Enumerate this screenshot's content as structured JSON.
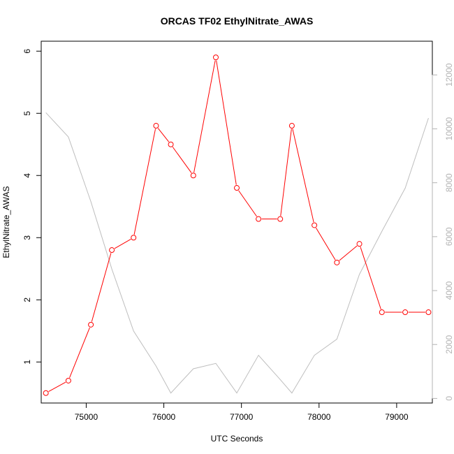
{
  "chart_data": {
    "type": "line",
    "title": "ORCAS TF02 EthylNitrate_AWAS",
    "xlabel": "UTC Seconds",
    "ylabel": "EthylNitrate_AWAS",
    "xlim": [
      74420,
      79460
    ],
    "ylim": [
      0.34,
      6.16
    ],
    "y2lim": [
      -170,
      13250
    ],
    "x_ticks": [
      75000,
      76000,
      77000,
      78000,
      79000
    ],
    "y_ticks": [
      1,
      2,
      3,
      4,
      5,
      6
    ],
    "y2_ticks": [
      0,
      2000,
      4000,
      6000,
      8000,
      10000,
      12000
    ],
    "grid": false,
    "series": [
      {
        "axis": "left",
        "color": "#ff0000",
        "marker": "open-circle",
        "x": [
          74480,
          74770,
          75060,
          75330,
          75610,
          75900,
          76090,
          76380,
          76670,
          76940,
          77220,
          77500,
          77650,
          77940,
          78230,
          78520,
          78810,
          79110,
          79410
        ],
        "y": [
          0.5,
          0.7,
          1.6,
          2.8,
          3.0,
          4.8,
          4.5,
          4.0,
          5.9,
          3.8,
          3.3,
          3.3,
          4.8,
          3.2,
          2.6,
          2.9,
          1.8,
          1.8,
          1.8
        ]
      },
      {
        "axis": "right",
        "color": "#bebebe",
        "marker": "none",
        "x": [
          74480,
          74770,
          75060,
          75330,
          75610,
          75900,
          76090,
          76380,
          76670,
          76940,
          77220,
          77500,
          77650,
          77940,
          78230,
          78520,
          78810,
          79110,
          79410
        ],
        "y": [
          10600,
          9700,
          7300,
          4800,
          2500,
          1200,
          200,
          1100,
          1300,
          200,
          1600,
          700,
          200,
          1600,
          2200,
          4600,
          6200,
          7800,
          10400
        ]
      }
    ]
  }
}
